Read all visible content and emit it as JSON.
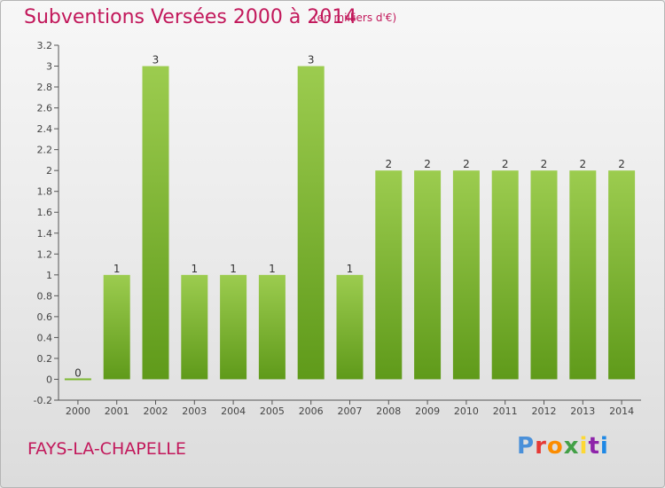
{
  "header": {
    "title": "Subventions Versées 2000 à 2014",
    "unit": "(en milliers d'€)"
  },
  "footer": {
    "commune": "FAYS-LA-CHAPELLE",
    "logo_letters": [
      "P",
      "r",
      "o",
      "x",
      "i",
      "t",
      "i"
    ],
    "logo_colors": [
      "#4a90d9",
      "#e53935",
      "#fb8c00",
      "#43a047",
      "#fdd835",
      "#8e24aa",
      "#1e88e5"
    ]
  },
  "chart_data": {
    "type": "bar",
    "title": "Subventions Versées 2000 à 2014",
    "xlabel": "",
    "ylabel": "",
    "categories": [
      "2000",
      "2001",
      "2002",
      "2003",
      "2004",
      "2005",
      "2006",
      "2007",
      "2008",
      "2009",
      "2010",
      "2011",
      "2012",
      "2013",
      "2014"
    ],
    "values": [
      0,
      1,
      3,
      1,
      1,
      1,
      3,
      1,
      2,
      2,
      2,
      2,
      2,
      2,
      2
    ],
    "data_labels": [
      "0",
      "1",
      "3",
      "1",
      "1",
      "1",
      "3",
      "1",
      "2",
      "2",
      "2",
      "2",
      "2",
      "2",
      "2"
    ],
    "ylim": [
      -0.2,
      3.2
    ],
    "yticks": [
      -0.2,
      0,
      0.2,
      0.4,
      0.6,
      0.8,
      1,
      1.2,
      1.4,
      1.6,
      1.8,
      2,
      2.2,
      2.4,
      2.6,
      2.8,
      3,
      3.2
    ],
    "ytick_labels": [
      "-0.2",
      "0",
      "0.2",
      "0.4",
      "0.6",
      "0.8",
      "1",
      "1.2",
      "1.4",
      "1.6",
      "1.8",
      "2",
      "2.2",
      "2.4",
      "2.6",
      "2.8",
      "3",
      "3.2"
    ],
    "grid": false,
    "bar_color_top": "#9ccc4f",
    "bar_color_bottom": "#5f9a1a"
  }
}
